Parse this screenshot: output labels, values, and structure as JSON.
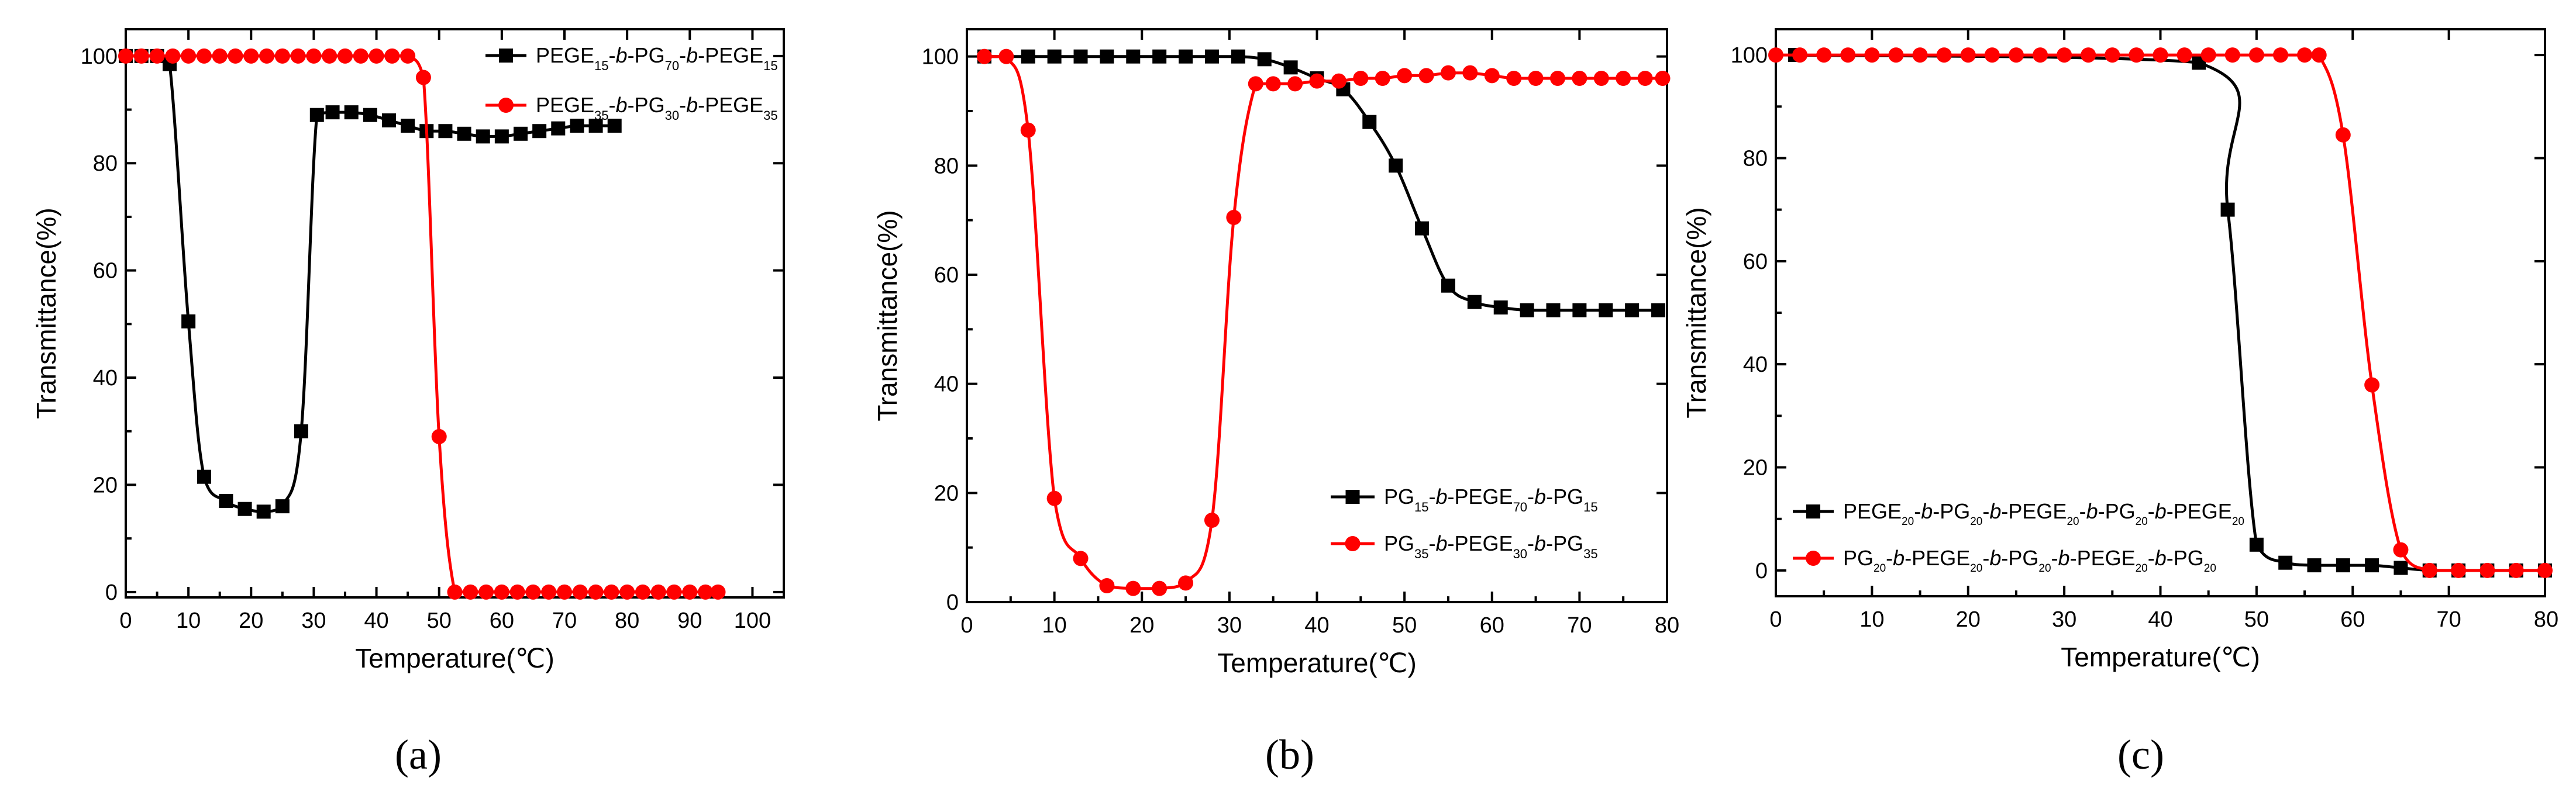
{
  "chart_data": [
    {
      "type": "line",
      "panel_label": "(a)",
      "xlabel": "Temperature(℃)",
      "ylabel": "Transmittance(%)",
      "xlim": [
        0,
        105
      ],
      "ylim": [
        -1,
        105
      ],
      "xticks": [
        0,
        10,
        20,
        30,
        40,
        50,
        60,
        70,
        80,
        90,
        100
      ],
      "yticks": [
        0,
        20,
        40,
        60,
        80,
        100
      ],
      "legend_position": "top-right",
      "series": [
        {
          "name": "PEGE15-b-PG70-b-PEGE15",
          "legend": [
            [
              "PEGE",
              "n"
            ],
            [
              "15",
              "sub"
            ],
            [
              "-",
              "n"
            ],
            [
              "b",
              "i"
            ],
            [
              "-PG",
              "n"
            ],
            [
              "70",
              "sub"
            ],
            [
              "-",
              "n"
            ],
            [
              "b",
              "i"
            ],
            [
              "-PEGE",
              "n"
            ],
            [
              "15",
              "sub"
            ]
          ],
          "color": "#000000",
          "marker": "square",
          "x": [
            0,
            2.5,
            5,
            7,
            10,
            12.5,
            16,
            19,
            22,
            25,
            28,
            30.5,
            33,
            36,
            39,
            42,
            45,
            48,
            51,
            54,
            57,
            60,
            63,
            66,
            69,
            72,
            75,
            78
          ],
          "y": [
            100,
            100,
            100,
            98.5,
            50.5,
            21.5,
            17,
            15.5,
            15,
            16,
            30,
            89,
            89.5,
            89.5,
            89,
            88,
            87,
            86,
            86,
            85.5,
            85,
            85,
            85.5,
            86,
            86.5,
            87,
            87,
            87
          ]
        },
        {
          "name": "PEGE35-b-PG30-b-PEGE35",
          "legend": [
            [
              "PEGE",
              "n"
            ],
            [
              "35",
              "sub"
            ],
            [
              "-",
              "n"
            ],
            [
              "b",
              "i"
            ],
            [
              "-PG",
              "n"
            ],
            [
              "30",
              "sub"
            ],
            [
              "-",
              "n"
            ],
            [
              "b",
              "i"
            ],
            [
              "-PEGE",
              "n"
            ],
            [
              "35",
              "sub"
            ]
          ],
          "color": "#ff0000",
          "marker": "circle",
          "x": [
            0,
            2.5,
            5,
            7.5,
            10,
            12.5,
            15,
            17.5,
            20,
            22.5,
            25,
            27.5,
            30,
            32.5,
            35,
            37.5,
            40,
            42.5,
            45,
            47.5,
            50,
            52.5,
            55,
            57.5,
            60,
            62.5,
            65,
            67.5,
            70,
            72.5,
            75,
            77.5,
            80,
            82.5,
            85,
            87.5,
            90,
            92.5,
            94.5
          ],
          "y": [
            100,
            100,
            100,
            100,
            100,
            100,
            100,
            100,
            100,
            100,
            100,
            100,
            100,
            100,
            100,
            100,
            100,
            100,
            100,
            96,
            29,
            0,
            0,
            0,
            0,
            0,
            0,
            0,
            0,
            0,
            0,
            0,
            0,
            0,
            0,
            0,
            0,
            0,
            0
          ]
        }
      ]
    },
    {
      "type": "line",
      "panel_label": "(b)",
      "xlabel": "Temperature(℃)",
      "ylabel": "Transmittance(%)",
      "xlim": [
        0,
        80
      ],
      "ylim": [
        0,
        105
      ],
      "xticks": [
        0,
        10,
        20,
        30,
        40,
        50,
        60,
        70,
        80
      ],
      "yticks": [
        0,
        20,
        40,
        60,
        80,
        100
      ],
      "legend_position": "bottom-right",
      "series": [
        {
          "name": "PG15-b-PEGE70-b-PG15",
          "legend": [
            [
              "PG",
              "n"
            ],
            [
              "15",
              "sub"
            ],
            [
              "-",
              "n"
            ],
            [
              "b",
              "i"
            ],
            [
              "-PEGE",
              "n"
            ],
            [
              "70",
              "sub"
            ],
            [
              "-",
              "n"
            ],
            [
              "b",
              "i"
            ],
            [
              "-PG",
              "n"
            ],
            [
              "15",
              "sub"
            ]
          ],
          "color": "#000000",
          "marker": "square",
          "x": [
            2,
            7,
            10,
            13,
            16,
            19,
            22,
            25,
            28,
            31,
            34,
            37,
            40,
            43,
            46,
            49,
            52,
            55,
            58,
            61,
            64,
            67,
            70,
            73,
            76,
            79
          ],
          "y": [
            100,
            100,
            100,
            100,
            100,
            100,
            100,
            100,
            100,
            100,
            99.5,
            98,
            96,
            94,
            88,
            80,
            68.5,
            58,
            55,
            54,
            53.5,
            53.5,
            53.5,
            53.5,
            53.5,
            53.5
          ]
        },
        {
          "name": "PG35-b-PEGE30-b-PG35",
          "legend": [
            [
              "PG",
              "n"
            ],
            [
              "35",
              "sub"
            ],
            [
              "-",
              "n"
            ],
            [
              "b",
              "i"
            ],
            [
              "-PEGE",
              "n"
            ],
            [
              "30",
              "sub"
            ],
            [
              "-",
              "n"
            ],
            [
              "b",
              "i"
            ],
            [
              "-PG",
              "n"
            ],
            [
              "35",
              "sub"
            ]
          ],
          "color": "#ff0000",
          "marker": "circle",
          "x": [
            2,
            4.5,
            7,
            10,
            13,
            16,
            19,
            22,
            25,
            28,
            30.5,
            33,
            35,
            37.5,
            40,
            42.5,
            45,
            47.5,
            50,
            52.5,
            55,
            57.5,
            60,
            62.5,
            65,
            67.5,
            70,
            72.5,
            75,
            77.5,
            79.5
          ],
          "y": [
            100,
            100,
            86.5,
            19,
            8,
            3,
            2.5,
            2.5,
            3.5,
            15,
            70.5,
            95,
            95,
            95,
            95.5,
            95.5,
            96,
            96,
            96.5,
            96.5,
            97,
            97,
            96.5,
            96,
            96,
            96,
            96,
            96,
            96,
            96,
            96
          ]
        }
      ]
    },
    {
      "type": "line",
      "panel_label": "(c)",
      "xlabel": "Temperature(℃)",
      "ylabel": "Transmittance(%)",
      "xlim": [
        0,
        80
      ],
      "ylim": [
        -5,
        105
      ],
      "xticks": [
        0,
        10,
        20,
        30,
        40,
        50,
        60,
        70
      ],
      "xtick_clipped_label": "80",
      "yticks": [
        0,
        20,
        40,
        60,
        80,
        100
      ],
      "legend_position": "bottom-left",
      "series": [
        {
          "name": "PEGE20-b-PG20-b-PEGE20-b-PG20-b-PEGE20",
          "legend": [
            [
              "PEGE",
              "n"
            ],
            [
              "20",
              "sub"
            ],
            [
              "-",
              "n"
            ],
            [
              "b",
              "i"
            ],
            [
              "-PG",
              "n"
            ],
            [
              "20",
              "sub"
            ],
            [
              "-",
              "n"
            ],
            [
              "b",
              "i"
            ],
            [
              "-PEGE",
              "n"
            ],
            [
              "20",
              "sub"
            ],
            [
              "-",
              "n"
            ],
            [
              "b",
              "i"
            ],
            [
              "-PG",
              "n"
            ],
            [
              "20",
              "sub"
            ],
            [
              "-",
              "n"
            ],
            [
              "b",
              "i"
            ],
            [
              "-PEGE",
              "n"
            ],
            [
              "20",
              "sub"
            ]
          ],
          "color": "#000000",
          "marker": "square",
          "x": [
            2,
            44,
            47,
            50,
            53,
            56,
            59,
            62,
            65,
            68,
            71,
            74,
            77,
            80
          ],
          "y": [
            100,
            98.5,
            70,
            5,
            1.5,
            1,
            1,
            1,
            0.5,
            0,
            0,
            0,
            0,
            0
          ]
        },
        {
          "name": "PG20-b-PEGE20-b-PG20-b-PEGE20-b-PG20",
          "legend": [
            [
              "PG",
              "n"
            ],
            [
              "20",
              "sub"
            ],
            [
              "-",
              "n"
            ],
            [
              "b",
              "i"
            ],
            [
              "-PEGE",
              "n"
            ],
            [
              "20",
              "sub"
            ],
            [
              "-",
              "n"
            ],
            [
              "b",
              "i"
            ],
            [
              "-PG",
              "n"
            ],
            [
              "20",
              "sub"
            ],
            [
              "-",
              "n"
            ],
            [
              "b",
              "i"
            ],
            [
              "-PEGE",
              "n"
            ],
            [
              "20",
              "sub"
            ],
            [
              "-",
              "n"
            ],
            [
              "b",
              "i"
            ],
            [
              "-PG",
              "n"
            ],
            [
              "20",
              "sub"
            ]
          ],
          "color": "#ff0000",
          "marker": "circle",
          "x": [
            0,
            2.5,
            5,
            7.5,
            10,
            12.5,
            15,
            17.5,
            20,
            22.5,
            25,
            27.5,
            30,
            32.5,
            35,
            37.5,
            40,
            42.5,
            45,
            47.5,
            50,
            52.5,
            55,
            56.5,
            59,
            62,
            65,
            68,
            71,
            74,
            77,
            80
          ],
          "y": [
            100,
            100,
            100,
            100,
            100,
            100,
            100,
            100,
            100,
            100,
            100,
            100,
            100,
            100,
            100,
            100,
            100,
            100,
            100,
            100,
            100,
            100,
            100,
            100,
            84.5,
            36,
            4,
            0,
            0,
            0,
            0,
            0
          ]
        }
      ]
    }
  ]
}
